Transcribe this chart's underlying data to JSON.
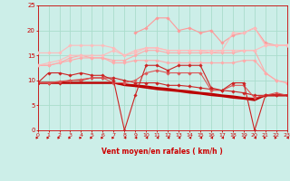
{
  "bg_color": "#cceee8",
  "grid_color": "#aaddcc",
  "xlabel": "Vent moyen/en rafales ( km/h )",
  "xlabel_color": "#cc0000",
  "tick_color": "#cc0000",
  "arrow_color": "#cc0000",
  "xlim": [
    0,
    23
  ],
  "ylim": [
    0,
    25
  ],
  "yticks": [
    0,
    5,
    10,
    15,
    20,
    25
  ],
  "xticks": [
    0,
    1,
    2,
    3,
    4,
    5,
    6,
    7,
    8,
    9,
    10,
    11,
    12,
    13,
    14,
    15,
    16,
    17,
    18,
    19,
    20,
    21,
    22,
    23
  ],
  "series": [
    {
      "x": [
        0,
        1,
        2,
        3,
        4,
        5,
        6,
        7,
        8,
        9,
        10,
        11,
        12,
        13,
        14,
        15,
        16,
        17,
        18,
        19,
        20,
        21,
        22,
        23
      ],
      "y": [
        9.5,
        9.5,
        9.5,
        9.5,
        9.5,
        9.5,
        9.5,
        9.5,
        9.2,
        9.0,
        8.8,
        8.5,
        8.3,
        8.0,
        7.8,
        7.5,
        7.3,
        7.0,
        6.8,
        6.5,
        6.3,
        7.0,
        7.0,
        7.0
      ],
      "color": "#bb0000",
      "lw": 1.5,
      "marker": null,
      "zorder": 5
    },
    {
      "x": [
        0,
        1,
        2,
        3,
        4,
        5,
        6,
        7,
        8,
        9,
        10,
        11,
        12,
        13,
        14,
        15,
        16,
        17,
        18,
        19,
        20,
        21,
        22,
        23
      ],
      "y": [
        9.5,
        9.5,
        9.5,
        9.5,
        9.5,
        9.5,
        9.5,
        9.5,
        9.0,
        8.8,
        8.5,
        8.2,
        8.0,
        7.8,
        7.5,
        7.3,
        7.0,
        6.8,
        6.5,
        6.3,
        6.0,
        7.0,
        7.0,
        7.0
      ],
      "color": "#bb0000",
      "lw": 1.2,
      "marker": null,
      "zorder": 4
    },
    {
      "x": [
        0,
        1,
        2,
        3,
        4,
        5,
        6,
        7,
        8,
        9,
        10,
        11,
        12,
        13,
        14,
        15,
        16,
        17,
        18,
        19,
        20,
        21,
        22,
        23
      ],
      "y": [
        9.5,
        9.5,
        9.5,
        10.0,
        10.0,
        10.5,
        10.5,
        10.5,
        10.0,
        9.5,
        9.5,
        9.5,
        9.0,
        9.0,
        8.8,
        8.5,
        8.2,
        8.0,
        7.8,
        7.5,
        7.0,
        7.0,
        7.0,
        7.0
      ],
      "color": "#cc2222",
      "lw": 0.8,
      "marker": "D",
      "ms": 1.8,
      "zorder": 6
    },
    {
      "x": [
        0,
        1,
        2,
        3,
        4,
        5,
        6,
        7,
        8,
        9,
        10,
        11,
        12,
        13,
        14,
        15,
        16,
        17,
        18,
        19,
        20,
        21,
        22,
        23
      ],
      "y": [
        9.5,
        11.5,
        11.5,
        11.0,
        11.5,
        11.0,
        11.0,
        10.0,
        0.0,
        7.0,
        13.0,
        13.0,
        12.0,
        13.0,
        13.0,
        13.0,
        8.5,
        8.0,
        9.5,
        9.5,
        0.0,
        7.0,
        7.0,
        7.0
      ],
      "color": "#cc2222",
      "lw": 0.8,
      "marker": "D",
      "ms": 1.8,
      "zorder": 7
    },
    {
      "x": [
        0,
        1,
        2,
        3,
        4,
        5,
        6,
        7,
        8,
        9,
        10,
        11,
        12,
        13,
        14,
        15,
        16,
        17,
        18,
        19,
        20,
        21,
        22,
        23
      ],
      "y": [
        9.5,
        9.5,
        9.8,
        10.0,
        10.2,
        10.5,
        10.5,
        9.5,
        9.5,
        10.0,
        11.5,
        12.0,
        11.5,
        11.5,
        11.5,
        11.5,
        8.0,
        8.0,
        9.0,
        9.0,
        6.5,
        7.0,
        7.5,
        7.0
      ],
      "color": "#dd5555",
      "lw": 0.8,
      "marker": "D",
      "ms": 1.8,
      "zorder": 6
    },
    {
      "x": [
        0,
        1,
        2,
        3,
        4,
        5,
        6,
        7,
        8,
        9,
        10,
        11,
        12,
        13,
        14,
        15,
        16,
        17,
        18,
        19,
        20,
        21,
        22,
        23
      ],
      "y": [
        13.0,
        13.0,
        13.5,
        14.0,
        14.5,
        14.5,
        14.5,
        13.5,
        13.5,
        14.0,
        14.0,
        14.0,
        13.5,
        13.5,
        13.5,
        13.5,
        13.5,
        13.5,
        13.5,
        14.0,
        14.0,
        11.5,
        10.0,
        9.5
      ],
      "color": "#ffaaaa",
      "lw": 0.8,
      "marker": "D",
      "ms": 1.8,
      "zorder": 2
    },
    {
      "x": [
        0,
        1,
        2,
        3,
        4,
        5,
        6,
        7,
        8,
        9,
        10,
        11,
        12,
        13,
        14,
        15,
        16,
        17,
        18,
        19,
        20,
        21,
        22,
        23
      ],
      "y": [
        13.0,
        13.0,
        13.5,
        14.5,
        15.0,
        14.5,
        14.5,
        14.0,
        14.0,
        15.0,
        16.0,
        16.0,
        15.5,
        15.5,
        15.5,
        15.5,
        15.5,
        15.5,
        15.5,
        16.0,
        16.0,
        11.5,
        10.0,
        9.5
      ],
      "color": "#ffaaaa",
      "lw": 0.8,
      "marker": "D",
      "ms": 1.8,
      "zorder": 2
    },
    {
      "x": [
        0,
        1,
        2,
        3,
        4,
        5,
        6,
        7,
        8,
        9,
        10,
        11,
        12,
        13,
        14,
        15,
        16,
        17,
        18,
        19,
        20,
        21,
        22,
        23
      ],
      "y": [
        13.0,
        13.5,
        14.0,
        15.0,
        15.0,
        15.0,
        15.0,
        16.0,
        15.0,
        16.0,
        16.5,
        16.5,
        16.0,
        16.0,
        16.0,
        16.0,
        16.0,
        16.0,
        16.0,
        16.0,
        16.0,
        17.0,
        17.0,
        17.0
      ],
      "color": "#ffbbbb",
      "lw": 0.8,
      "marker": "D",
      "ms": 1.8,
      "zorder": 3
    },
    {
      "x": [
        0,
        1,
        2,
        3,
        4,
        5,
        6,
        7,
        8,
        9,
        10,
        11,
        12,
        13,
        14,
        15,
        16,
        17,
        18,
        19,
        20,
        21,
        22,
        23
      ],
      "y": [
        15.5,
        15.5,
        15.5,
        17.0,
        17.0,
        17.0,
        17.0,
        16.5,
        15.0,
        15.5,
        16.5,
        16.5,
        16.0,
        16.0,
        16.0,
        16.0,
        15.5,
        16.0,
        19.5,
        19.5,
        20.5,
        17.0,
        17.0,
        17.0
      ],
      "color": "#ffbbbb",
      "lw": 0.8,
      "marker": "D",
      "ms": 1.8,
      "zorder": 3
    },
    {
      "x": [
        9,
        10,
        11,
        12,
        13,
        14,
        15,
        16,
        17,
        18,
        19,
        20,
        21,
        22,
        23
      ],
      "y": [
        19.5,
        20.5,
        22.5,
        22.5,
        20.0,
        20.5,
        19.5,
        20.0,
        17.5,
        19.0,
        19.5,
        20.5,
        17.5,
        17.0,
        17.0
      ],
      "color": "#ff9999",
      "lw": 0.8,
      "marker": "D",
      "ms": 1.8,
      "zorder": 2
    }
  ],
  "wind_arrows": {
    "x": [
      0,
      1,
      2,
      3,
      4,
      5,
      6,
      7,
      8,
      9,
      10,
      11,
      12,
      13,
      14,
      15,
      16,
      17,
      18,
      19,
      20,
      21,
      22,
      23
    ],
    "directions_right": [
      true,
      true,
      true,
      true,
      true,
      true,
      true,
      true,
      false,
      false,
      false,
      false,
      false,
      false,
      false,
      false,
      false,
      false,
      false,
      false,
      false,
      true,
      true,
      false
    ]
  }
}
